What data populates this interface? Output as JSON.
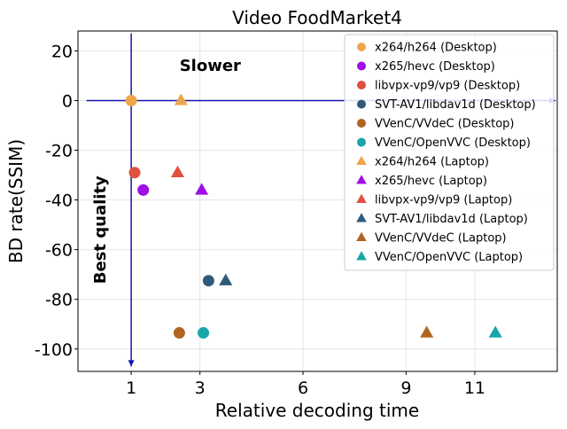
{
  "chart_data": {
    "type": "scatter",
    "title": "Video FoodMarket4",
    "xlabel": "Relative decoding time",
    "ylabel": "BD rate(SSIM)",
    "xlim": [
      -0.55,
      13.4
    ],
    "ylim": [
      -109,
      28
    ],
    "x_ticks": [
      1,
      3,
      6,
      9,
      11
    ],
    "y_ticks": [
      20,
      0,
      -20,
      -40,
      -60,
      -80,
      -100
    ],
    "grid": true,
    "legend_position": "top-right",
    "annotations": [
      {
        "text": "Slower",
        "x": 3.3,
        "y": 12
      },
      {
        "text": "Best quality",
        "x": 0.25,
        "y": -52,
        "rotation": -90
      }
    ],
    "reference_arrows": [
      {
        "from": [
          -0.3,
          0
        ],
        "to": [
          13.4,
          0
        ],
        "color": "#1515b0"
      },
      {
        "from": [
          1,
          27
        ],
        "to": [
          1,
          -107
        ],
        "color": "#1515b0"
      }
    ],
    "series": [
      {
        "name": "x264/h264 (Desktop)",
        "marker": "circle",
        "color": "#eea64d",
        "points": [
          [
            1.0,
            0
          ]
        ]
      },
      {
        "name": "x265/hevc (Desktop)",
        "marker": "circle",
        "color": "#a00ee6",
        "points": [
          [
            1.35,
            -36
          ]
        ]
      },
      {
        "name": "libvpx-vp9/vp9 (Desktop)",
        "marker": "circle",
        "color": "#e0503e",
        "points": [
          [
            1.1,
            -29
          ]
        ]
      },
      {
        "name": "SVT-AV1/libdav1d (Desktop)",
        "marker": "circle",
        "color": "#2e5a7a",
        "points": [
          [
            3.25,
            -72.5
          ]
        ]
      },
      {
        "name": "VVenC/VVdeC (Desktop)",
        "marker": "circle",
        "color": "#b06420",
        "points": [
          [
            2.4,
            -93.5
          ]
        ]
      },
      {
        "name": "VVenC/OpenVVC (Desktop)",
        "marker": "circle",
        "color": "#17a5ab",
        "points": [
          [
            3.1,
            -93.5
          ]
        ]
      },
      {
        "name": "x264/h264 (Laptop)",
        "marker": "triangle",
        "color": "#eea64d",
        "points": [
          [
            2.45,
            0
          ]
        ]
      },
      {
        "name": "x265/hevc (Laptop)",
        "marker": "triangle",
        "color": "#a00ee6",
        "points": [
          [
            3.05,
            -36
          ]
        ]
      },
      {
        "name": "libvpx-vp9/vp9 (Laptop)",
        "marker": "triangle",
        "color": "#e0503e",
        "points": [
          [
            2.35,
            -29
          ]
        ]
      },
      {
        "name": "SVT-AV1/libdav1d (Laptop)",
        "marker": "triangle",
        "color": "#2e5a7a",
        "points": [
          [
            3.75,
            -72.5
          ]
        ]
      },
      {
        "name": "VVenC/VVdeC (Laptop)",
        "marker": "triangle",
        "color": "#b06420",
        "points": [
          [
            9.6,
            -93.5
          ]
        ]
      },
      {
        "name": "VVenC/OpenVVC (Laptop)",
        "marker": "triangle",
        "color": "#17a5ab",
        "points": [
          [
            11.6,
            -93.5
          ]
        ]
      }
    ]
  }
}
